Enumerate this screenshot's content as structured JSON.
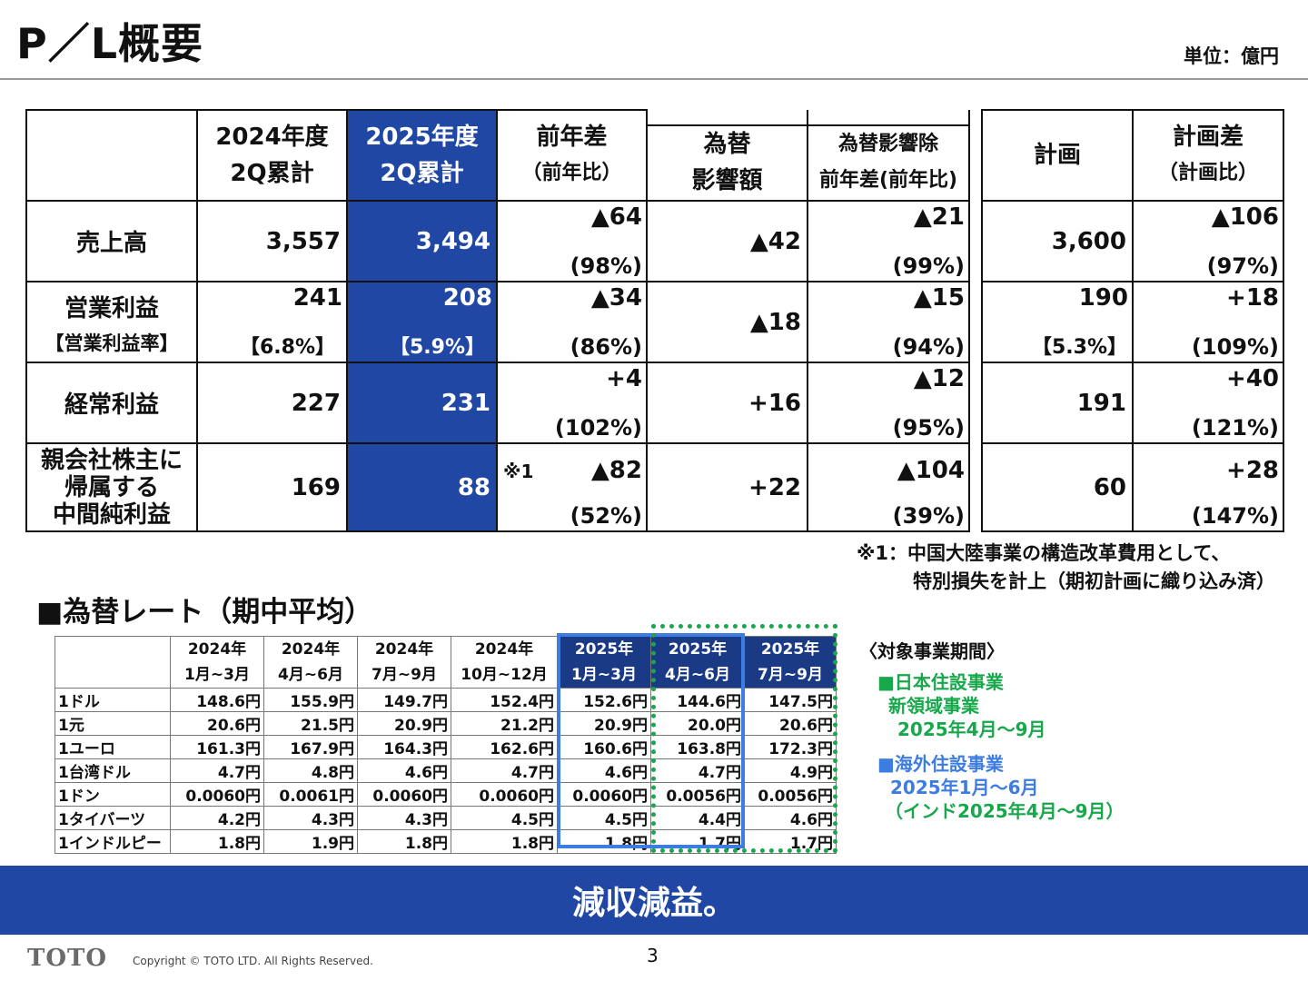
{
  "title": "P／L概要",
  "unit": "単位：億円",
  "pl": {
    "headers": {
      "y2024": [
        "2024年度",
        "2Q累計"
      ],
      "y2025": [
        "2025年度",
        "2Q累計"
      ],
      "diff": [
        "前年差",
        "（前年比）"
      ],
      "fx": [
        "為替",
        "影響額"
      ],
      "exfx": [
        "為替影響除",
        "前年差(前年比)"
      ],
      "plan": "計画",
      "plandiff": [
        "計画差",
        "（計画比）"
      ]
    },
    "rows": [
      {
        "label": "売上高",
        "sub": "",
        "y2024": "3,557",
        "y2024_sub": "",
        "y2025": "3,494",
        "y2025_sub": "",
        "diff": "▲64",
        "diff_pct": "(98%)",
        "fx": "▲42",
        "exfx": "▲21",
        "exfx_pct": "(99%)",
        "plan": "3,600",
        "plan_sub": "",
        "plandiff": "▲106",
        "plandiff_pct": "(97%)"
      },
      {
        "label": "営業利益",
        "sub": "【営業利益率】",
        "y2024": "241",
        "y2024_sub": "【6.8%】",
        "y2025": "208",
        "y2025_sub": "【5.9%】",
        "diff": "▲34",
        "diff_pct": "(86%)",
        "fx": "▲18",
        "exfx": "▲15",
        "exfx_pct": "(94%)",
        "plan": "190",
        "plan_sub": "【5.3%】",
        "plandiff": "+18",
        "plandiff_pct": "(109%)"
      },
      {
        "label": "経常利益",
        "sub": "",
        "y2024": "227",
        "y2024_sub": "",
        "y2025": "231",
        "y2025_sub": "",
        "diff": "+4",
        "diff_pct": "(102%)",
        "fx": "+16",
        "exfx": "▲12",
        "exfx_pct": "(95%)",
        "plan": "191",
        "plan_sub": "",
        "plandiff": "+40",
        "plandiff_pct": "(121%)"
      },
      {
        "label_lines": [
          "親会社株主に",
          "帰属する",
          "中間純利益"
        ],
        "y2024": "169",
        "y2025": "88",
        "note": "※1",
        "diff": "▲82",
        "diff_pct": "(52%)",
        "fx": "+22",
        "exfx": "▲104",
        "exfx_pct": "(39%)",
        "plan": "60",
        "plandiff": "+28",
        "plandiff_pct": "(147%)"
      }
    ]
  },
  "footnote": [
    "※1：中国大陸事業の構造改革費用として、",
    "特別損失を計上（期初計画に織り込み済）"
  ],
  "fx_section": {
    "title": "■為替レート（期中平均）",
    "columns": [
      [
        "2024年",
        "1月~3月"
      ],
      [
        "2024年",
        "4月~6月"
      ],
      [
        "2024年",
        "7月~9月"
      ],
      [
        "2024年",
        "10月~12月"
      ],
      [
        "2025年",
        "1月~3月"
      ],
      [
        "2025年",
        "4月~6月"
      ],
      [
        "2025年",
        "7月~9月"
      ]
    ],
    "rows": [
      {
        "label": "1ドル",
        "values": [
          "148.6円",
          "155.9円",
          "149.7円",
          "152.4円",
          "152.6円",
          "144.6円",
          "147.5円"
        ]
      },
      {
        "label": "1元",
        "values": [
          "20.6円",
          "21.5円",
          "20.9円",
          "21.2円",
          "20.9円",
          "20.0円",
          "20.6円"
        ]
      },
      {
        "label": "1ユーロ",
        "values": [
          "161.3円",
          "167.9円",
          "164.3円",
          "162.6円",
          "160.6円",
          "163.8円",
          "172.3円"
        ]
      },
      {
        "label": "1台湾ドル",
        "values": [
          "4.7円",
          "4.8円",
          "4.6円",
          "4.7円",
          "4.6円",
          "4.7円",
          "4.9円"
        ]
      },
      {
        "label": "1ドン",
        "values": [
          "0.0060円",
          "0.0061円",
          "0.0060円",
          "0.0060円",
          "0.0060円",
          "0.0056円",
          "0.0056円"
        ]
      },
      {
        "label": "1タイバーツ",
        "values": [
          "4.2円",
          "4.3円",
          "4.3円",
          "4.5円",
          "4.5円",
          "4.4円",
          "4.6円"
        ]
      },
      {
        "label": "1インドルピー",
        "values": [
          "1.8円",
          "1.9円",
          "1.8円",
          "1.8円",
          "1.8円",
          "1.7円",
          "1.7円"
        ]
      }
    ],
    "legend": {
      "head": "〈対象事業期間〉",
      "green_title": "■日本住設事業",
      "green_line2": "新領域事業",
      "green_period": "2025年4月～9月",
      "blue_title": "■海外住設事業",
      "blue_period": "2025年1月～6月",
      "blue_note": "（インド2025年4月～9月）",
      "green_color": "#17a84b",
      "blue_color": "#3d7ce0"
    }
  },
  "banner": "減収減益。",
  "footer": {
    "logo": "TOTO",
    "copyright": "Copyright © TOTO LTD. All Rights Reserved.",
    "page": "3"
  },
  "colors": {
    "highlight": "#1f47a3",
    "banner": "#1f47a3"
  }
}
